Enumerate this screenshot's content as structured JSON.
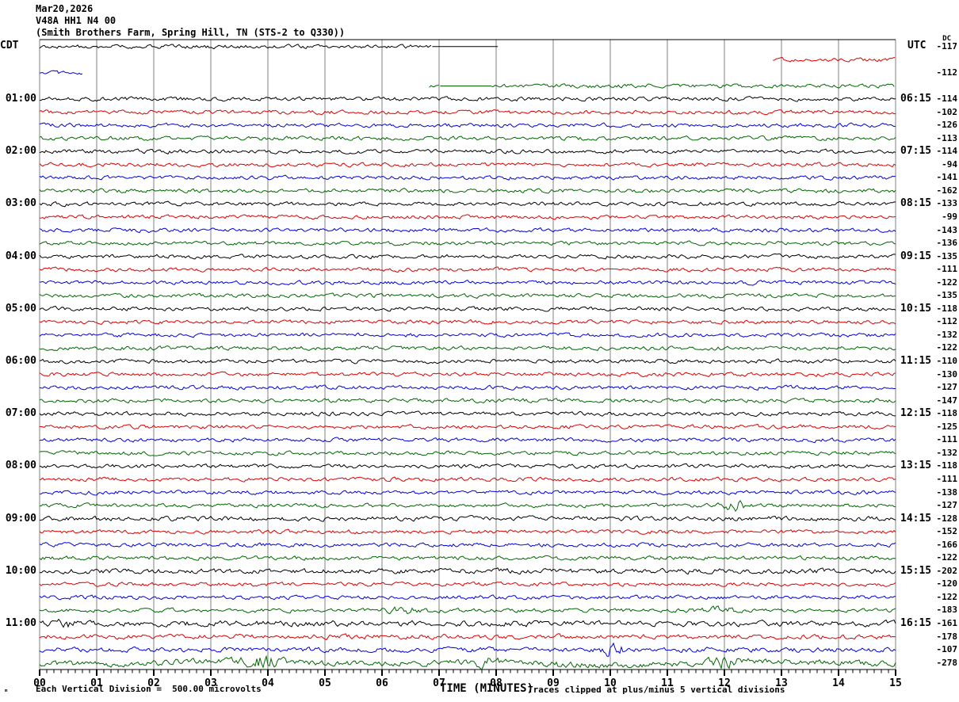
{
  "header": {
    "date": "Mar20,2026",
    "station": "V48A HH1 N4 00",
    "location": "(Smith Brothers Farm, Spring Hill, TN (STS-2 to Q330))"
  },
  "corner_labels": {
    "left_timezone": "CDT",
    "right_timezone": "UTC",
    "dc_header": "DC"
  },
  "footer": {
    "corner_glyph": "ₘ",
    "scale_note": "Each Vertical Division =  500.00 microvolts",
    "xaxis_title": "TIME (MINUTES)",
    "clip_note": "Traces clipped at plus/minus 5 vertical divisions"
  },
  "chart_data": {
    "type": "heliplot-seismogram",
    "x_axis": {
      "title": "TIME (MINUTES)",
      "ticks": [
        "00",
        "01",
        "02",
        "03",
        "04",
        "05",
        "06",
        "07",
        "08",
        "09",
        "10",
        "11",
        "12",
        "13",
        "14",
        "15"
      ],
      "minutes_per_line": 15,
      "minor_ticks_per_minute": 8
    },
    "scale_note": "Each Vertical Division =  500.00 microvolts",
    "clip_note": "Traces clipped at plus/minus 5 vertical divisions",
    "trace_colors": {
      "black": "#000000",
      "red": "#dd0000",
      "blue": "#0000dd",
      "green": "#006600"
    },
    "grid_color": "#808080",
    "rows": [
      {
        "color": "black",
        "cdt": null,
        "utc": null,
        "dc": "-117",
        "segments": [
          [
            0,
            6.88,
            "n"
          ],
          [
            6.88,
            8.03,
            "f"
          ]
        ]
      },
      {
        "color": "red",
        "cdt": null,
        "utc": null,
        "dc": null,
        "segments": [
          [
            12.85,
            15,
            "n"
          ]
        ]
      },
      {
        "color": "blue",
        "cdt": null,
        "utc": null,
        "dc": "-112",
        "segments": [
          [
            0,
            0.76,
            "n"
          ]
        ]
      },
      {
        "color": "green",
        "cdt": null,
        "utc": null,
        "dc": null,
        "segments": [
          [
            6.83,
            7.02,
            "n"
          ],
          [
            7.02,
            7.92,
            "f"
          ],
          [
            7.92,
            15,
            "n"
          ]
        ]
      },
      {
        "color": "black",
        "cdt": "01:00",
        "utc": "06:15",
        "dc": "-114"
      },
      {
        "color": "red",
        "cdt": null,
        "utc": null,
        "dc": "-102"
      },
      {
        "color": "blue",
        "cdt": null,
        "utc": null,
        "dc": "-126"
      },
      {
        "color": "green",
        "cdt": null,
        "utc": null,
        "dc": "-113"
      },
      {
        "color": "black",
        "cdt": "02:00",
        "utc": "07:15",
        "dc": "-114"
      },
      {
        "color": "red",
        "cdt": null,
        "utc": null,
        "dc": "-94"
      },
      {
        "color": "blue",
        "cdt": null,
        "utc": null,
        "dc": "-141"
      },
      {
        "color": "green",
        "cdt": null,
        "utc": null,
        "dc": "-162"
      },
      {
        "color": "black",
        "cdt": "03:00",
        "utc": "08:15",
        "dc": "-133"
      },
      {
        "color": "red",
        "cdt": null,
        "utc": null,
        "dc": "-99"
      },
      {
        "color": "blue",
        "cdt": null,
        "utc": null,
        "dc": "-143"
      },
      {
        "color": "green",
        "cdt": null,
        "utc": null,
        "dc": "-136"
      },
      {
        "color": "black",
        "cdt": "04:00",
        "utc": "09:15",
        "dc": "-135"
      },
      {
        "color": "red",
        "cdt": null,
        "utc": null,
        "dc": "-111"
      },
      {
        "color": "blue",
        "cdt": null,
        "utc": null,
        "dc": "-122"
      },
      {
        "color": "green",
        "cdt": null,
        "utc": null,
        "dc": "-135"
      },
      {
        "color": "black",
        "cdt": "05:00",
        "utc": "10:15",
        "dc": "-118"
      },
      {
        "color": "red",
        "cdt": null,
        "utc": null,
        "dc": "-112"
      },
      {
        "color": "blue",
        "cdt": null,
        "utc": null,
        "dc": "-132"
      },
      {
        "color": "green",
        "cdt": null,
        "utc": null,
        "dc": "-122"
      },
      {
        "color": "black",
        "cdt": "06:00",
        "utc": "11:15",
        "dc": "-110"
      },
      {
        "color": "red",
        "cdt": null,
        "utc": null,
        "dc": "-130"
      },
      {
        "color": "blue",
        "cdt": null,
        "utc": null,
        "dc": "-127"
      },
      {
        "color": "green",
        "cdt": null,
        "utc": null,
        "dc": "-147"
      },
      {
        "color": "black",
        "cdt": "07:00",
        "utc": "12:15",
        "dc": "-118"
      },
      {
        "color": "red",
        "cdt": null,
        "utc": null,
        "dc": "-125"
      },
      {
        "color": "blue",
        "cdt": null,
        "utc": null,
        "dc": "-111"
      },
      {
        "color": "green",
        "cdt": null,
        "utc": null,
        "dc": "-132"
      },
      {
        "color": "black",
        "cdt": "08:00",
        "utc": "13:15",
        "dc": "-118"
      },
      {
        "color": "red",
        "cdt": null,
        "utc": null,
        "dc": "-111"
      },
      {
        "color": "blue",
        "cdt": null,
        "utc": null,
        "dc": "-138"
      },
      {
        "color": "green",
        "cdt": null,
        "utc": null,
        "dc": "-127",
        "bursts": [
          [
            12.2,
            0.3,
            4
          ]
        ]
      },
      {
        "color": "black",
        "cdt": "09:00",
        "utc": "14:15",
        "dc": "-128",
        "amp": 2.1
      },
      {
        "color": "red",
        "cdt": null,
        "utc": null,
        "dc": "-152"
      },
      {
        "color": "blue",
        "cdt": null,
        "utc": null,
        "dc": "-166"
      },
      {
        "color": "green",
        "cdt": null,
        "utc": null,
        "dc": "-122"
      },
      {
        "color": "black",
        "cdt": "10:00",
        "utc": "15:15",
        "dc": "-202",
        "amp": 2.3
      },
      {
        "color": "red",
        "cdt": null,
        "utc": null,
        "dc": "-120"
      },
      {
        "color": "blue",
        "cdt": null,
        "utc": null,
        "dc": "-122"
      },
      {
        "color": "green",
        "cdt": null,
        "utc": null,
        "dc": "-183",
        "bursts": [
          [
            6.45,
            0.5,
            3
          ],
          [
            11.9,
            0.5,
            2
          ]
        ]
      },
      {
        "color": "black",
        "cdt": "11:00",
        "utc": "16:15",
        "dc": "-161",
        "amp": 2.5,
        "bursts": [
          [
            0.45,
            0.3,
            2.5
          ]
        ]
      },
      {
        "color": "red",
        "cdt": null,
        "utc": null,
        "dc": "-178",
        "amp": 2.2
      },
      {
        "color": "blue",
        "cdt": null,
        "utc": null,
        "dc": "-107",
        "amp": 2.2,
        "bursts": [
          [
            10.05,
            0.22,
            6
          ]
        ]
      },
      {
        "color": "green",
        "cdt": null,
        "utc": null,
        "dc": "-278",
        "amp": 2.6,
        "wander": 2,
        "bursts": [
          [
            3.9,
            0.4,
            7
          ],
          [
            7.85,
            0.3,
            4
          ],
          [
            9.15,
            0.25,
            3
          ],
          [
            12.0,
            0.35,
            3.5
          ]
        ]
      }
    ]
  }
}
